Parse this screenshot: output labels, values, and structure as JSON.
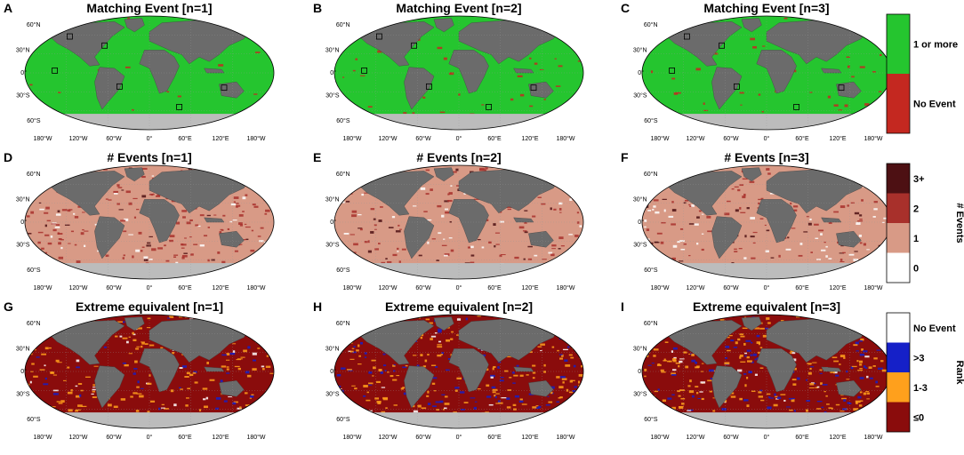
{
  "colors": {
    "land": "#6b6b6b",
    "antarctica": "#bcbcbc",
    "match": "#25c52f",
    "no_event": "#c42820",
    "ev0": "#ffffff",
    "ev1": "#d89a86",
    "ev2": "#a8302b",
    "ev3": "#4d1013",
    "rank_none": "#ffffff",
    "rank_gt3": "#1520c8",
    "rank_13": "#ffa01c",
    "rank_le0": "#8a0c0c"
  },
  "lon_ticks": [
    "180°W",
    "120°W",
    "60°W",
    "0°",
    "60°E",
    "120°E",
    "180°W"
  ],
  "lat_ticks": [
    "60°N",
    "30°N",
    "0°",
    "30°S",
    "60°S"
  ],
  "rows": [
    {
      "kind": "match",
      "panels": [
        {
          "letter": "A",
          "title": "Matching Event [n=1]",
          "density": 0.03
        },
        {
          "letter": "B",
          "title": "Matching Event [n=2]",
          "density": 0.05
        },
        {
          "letter": "C",
          "title": "Matching Event [n=3]",
          "density": 0.06
        }
      ],
      "colorbar": {
        "label": "",
        "entries": [
          "1 or more",
          "No Event"
        ],
        "colors": [
          "match",
          "no_event"
        ]
      }
    },
    {
      "kind": "events",
      "panels": [
        {
          "letter": "D",
          "title": "# Events [n=1]",
          "density": 0.55
        },
        {
          "letter": "E",
          "title": "# Events [n=2]",
          "density": 0.35
        },
        {
          "letter": "F",
          "title": "# Events [n=3]",
          "density": 0.25
        }
      ],
      "colorbar": {
        "label": "# Events",
        "entries": [
          "3+",
          "2",
          "1",
          "0"
        ],
        "colors": [
          "ev3",
          "ev2",
          "ev1",
          "ev0"
        ]
      }
    },
    {
      "kind": "rank",
      "panels": [
        {
          "letter": "G",
          "title": "Extreme equivalent [n=1]",
          "density": 0.2
        },
        {
          "letter": "H",
          "title": "Extreme equivalent [n=2]",
          "density": 0.4
        },
        {
          "letter": "I",
          "title": "Extreme equivalent [n=3]",
          "density": 0.5
        }
      ],
      "colorbar": {
        "label": "Rank",
        "entries": [
          "No Event",
          ">3",
          "1-3",
          "≤0"
        ],
        "colors": [
          "rank_none",
          "rank_gt3",
          "rank_13",
          "rank_le0"
        ]
      }
    }
  ]
}
